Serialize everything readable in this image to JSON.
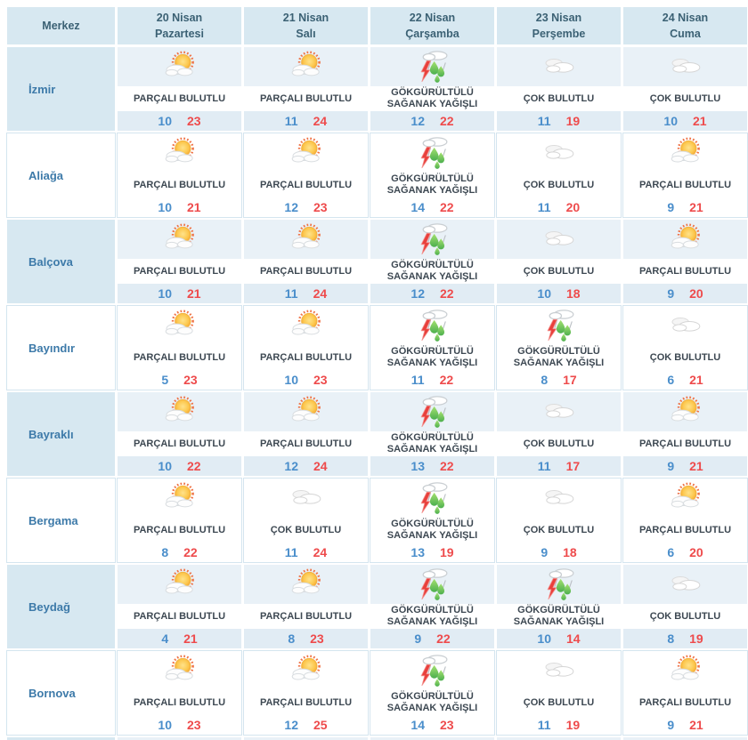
{
  "table": {
    "corner_header": "Merkez",
    "day_headers": [
      {
        "date": "20 Nisan",
        "weekday": "Pazartesi"
      },
      {
        "date": "21 Nisan",
        "weekday": "Salı"
      },
      {
        "date": "22 Nisan",
        "weekday": "Çarşamba"
      },
      {
        "date": "23 Nisan",
        "weekday": "Perşembe"
      },
      {
        "date": "24 Nisan",
        "weekday": "Cuma"
      }
    ],
    "rows": [
      {
        "name": "İzmir",
        "cells": [
          {
            "icon": "partly-cloudy",
            "label": "PARÇALI BULUTLU",
            "min": 10,
            "max": 23
          },
          {
            "icon": "partly-cloudy",
            "label": "PARÇALI BULUTLU",
            "min": 11,
            "max": 24
          },
          {
            "icon": "thunderstorm",
            "label": "GÖKGÜRÜLTÜLÜ SAĞANAK YAĞIŞLI",
            "min": 12,
            "max": 22
          },
          {
            "icon": "cloudy",
            "label": "ÇOK BULUTLU",
            "min": 11,
            "max": 19
          },
          {
            "icon": "cloudy",
            "label": "ÇOK BULUTLU",
            "min": 10,
            "max": 21
          }
        ]
      },
      {
        "name": "Aliağa",
        "cells": [
          {
            "icon": "partly-cloudy",
            "label": "PARÇALI BULUTLU",
            "min": 10,
            "max": 21
          },
          {
            "icon": "partly-cloudy",
            "label": "PARÇALI BULUTLU",
            "min": 12,
            "max": 23
          },
          {
            "icon": "thunderstorm",
            "label": "GÖKGÜRÜLTÜLÜ SAĞANAK YAĞIŞLI",
            "min": 14,
            "max": 22
          },
          {
            "icon": "cloudy",
            "label": "ÇOK BULUTLU",
            "min": 11,
            "max": 20
          },
          {
            "icon": "partly-cloudy",
            "label": "PARÇALI BULUTLU",
            "min": 9,
            "max": 21
          }
        ]
      },
      {
        "name": "Balçova",
        "cells": [
          {
            "icon": "partly-cloudy",
            "label": "PARÇALI BULUTLU",
            "min": 10,
            "max": 21
          },
          {
            "icon": "partly-cloudy",
            "label": "PARÇALI BULUTLU",
            "min": 11,
            "max": 24
          },
          {
            "icon": "thunderstorm",
            "label": "GÖKGÜRÜLTÜLÜ SAĞANAK YAĞIŞLI",
            "min": 12,
            "max": 22
          },
          {
            "icon": "cloudy",
            "label": "ÇOK BULUTLU",
            "min": 10,
            "max": 18
          },
          {
            "icon": "partly-cloudy",
            "label": "PARÇALI BULUTLU",
            "min": 9,
            "max": 20
          }
        ]
      },
      {
        "name": "Bayındır",
        "cells": [
          {
            "icon": "partly-cloudy",
            "label": "PARÇALI BULUTLU",
            "min": 5,
            "max": 23
          },
          {
            "icon": "partly-cloudy",
            "label": "PARÇALI BULUTLU",
            "min": 10,
            "max": 23
          },
          {
            "icon": "thunderstorm",
            "label": "GÖKGÜRÜLTÜLÜ SAĞANAK YAĞIŞLI",
            "min": 11,
            "max": 22
          },
          {
            "icon": "thunderstorm",
            "label": "GÖKGÜRÜLTÜLÜ SAĞANAK YAĞIŞLI",
            "min": 8,
            "max": 17
          },
          {
            "icon": "cloudy",
            "label": "ÇOK BULUTLU",
            "min": 6,
            "max": 21
          }
        ]
      },
      {
        "name": "Bayraklı",
        "cells": [
          {
            "icon": "partly-cloudy",
            "label": "PARÇALI BULUTLU",
            "min": 10,
            "max": 22
          },
          {
            "icon": "partly-cloudy",
            "label": "PARÇALI BULUTLU",
            "min": 12,
            "max": 24
          },
          {
            "icon": "thunderstorm",
            "label": "GÖKGÜRÜLTÜLÜ SAĞANAK YAĞIŞLI",
            "min": 13,
            "max": 22
          },
          {
            "icon": "cloudy",
            "label": "ÇOK BULUTLU",
            "min": 11,
            "max": 17
          },
          {
            "icon": "partly-cloudy",
            "label": "PARÇALI BULUTLU",
            "min": 9,
            "max": 21
          }
        ]
      },
      {
        "name": "Bergama",
        "cells": [
          {
            "icon": "partly-cloudy",
            "label": "PARÇALI BULUTLU",
            "min": 8,
            "max": 22
          },
          {
            "icon": "cloudy",
            "label": "ÇOK BULUTLU",
            "min": 11,
            "max": 24
          },
          {
            "icon": "thunderstorm",
            "label": "GÖKGÜRÜLTÜLÜ SAĞANAK YAĞIŞLI",
            "min": 13,
            "max": 19
          },
          {
            "icon": "cloudy",
            "label": "ÇOK BULUTLU",
            "min": 9,
            "max": 18
          },
          {
            "icon": "partly-cloudy",
            "label": "PARÇALI BULUTLU",
            "min": 6,
            "max": 20
          }
        ]
      },
      {
        "name": "Beydağ",
        "cells": [
          {
            "icon": "partly-cloudy",
            "label": "PARÇALI BULUTLU",
            "min": 4,
            "max": 21
          },
          {
            "icon": "partly-cloudy",
            "label": "PARÇALI BULUTLU",
            "min": 8,
            "max": 23
          },
          {
            "icon": "thunderstorm",
            "label": "GÖKGÜRÜLTÜLÜ SAĞANAK YAĞIŞLI",
            "min": 9,
            "max": 22
          },
          {
            "icon": "thunderstorm",
            "label": "GÖKGÜRÜLTÜLÜ SAĞANAK YAĞIŞLI",
            "min": 10,
            "max": 14
          },
          {
            "icon": "cloudy",
            "label": "ÇOK BULUTLU",
            "min": 8,
            "max": 19
          }
        ]
      },
      {
        "name": "Bornova",
        "cells": [
          {
            "icon": "partly-cloudy",
            "label": "PARÇALI BULUTLU",
            "min": 10,
            "max": 23
          },
          {
            "icon": "partly-cloudy",
            "label": "PARÇALI BULUTLU",
            "min": 12,
            "max": 25
          },
          {
            "icon": "thunderstorm",
            "label": "GÖKGÜRÜLTÜLÜ SAĞANAK YAĞIŞLI",
            "min": 14,
            "max": 23
          },
          {
            "icon": "cloudy",
            "label": "ÇOK BULUTLU",
            "min": 11,
            "max": 19
          },
          {
            "icon": "partly-cloudy",
            "label": "PARÇALI BULUTLU",
            "min": 9,
            "max": 21
          }
        ]
      }
    ]
  },
  "colors": {
    "header_text": "#3b6174",
    "district_text": "#3d7aa9",
    "desc_text": "#3d4852",
    "min_temp": "#4a8ecb",
    "max_temp": "#ee4b4c",
    "cell_blue": "#d7e8f1",
    "cell_blue_light": "#e9f1f7",
    "cell_blue_mid": "#e1ecf4",
    "row_border": "#d4e5ef"
  }
}
